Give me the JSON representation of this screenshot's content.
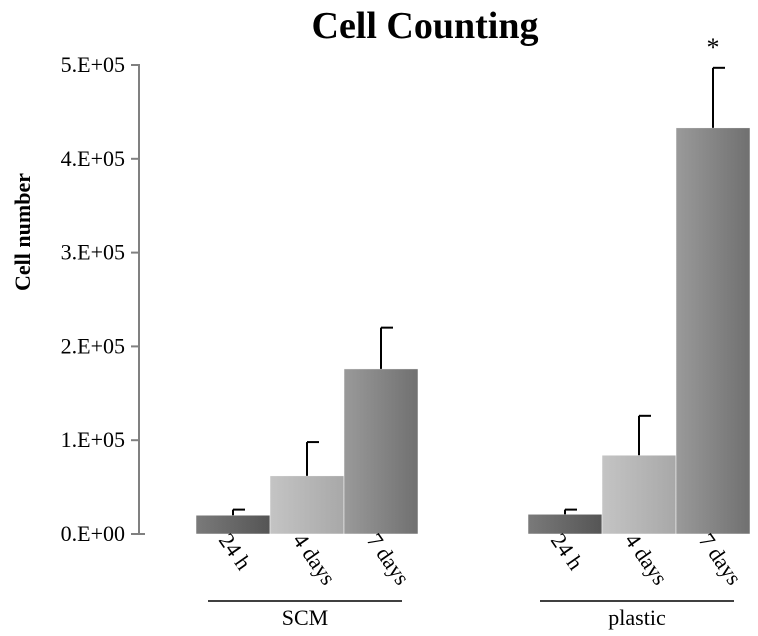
{
  "chart_data": {
    "type": "bar",
    "title": "Cell Counting",
    "ylabel": "Cell number",
    "ylim": [
      0,
      500000
    ],
    "yticks": [
      {
        "value": 0,
        "label": "0.E+00"
      },
      {
        "value": 100000,
        "label": "1.E+05"
      },
      {
        "value": 200000,
        "label": "2.E+05"
      },
      {
        "value": 300000,
        "label": "3.E+05"
      },
      {
        "value": 400000,
        "label": "4.E+05"
      },
      {
        "value": 500000,
        "label": "5.E+05"
      }
    ],
    "categories": [
      "24 h",
      "4 days",
      "7 days"
    ],
    "groups": [
      {
        "name": "SCM",
        "bars": [
          {
            "category": "24 h",
            "value": 20000,
            "error": 6000
          },
          {
            "category": "4 days",
            "value": 62000,
            "error": 36000
          },
          {
            "category": "7 days",
            "value": 176000,
            "error": 44000
          }
        ]
      },
      {
        "name": "plastic",
        "bars": [
          {
            "category": "24 h",
            "value": 21000,
            "error": 5000
          },
          {
            "category": "4 days",
            "value": 84000,
            "error": 42000
          },
          {
            "category": "7 days",
            "value": 433000,
            "error": 64000,
            "annotation": "*"
          }
        ]
      }
    ],
    "colors": {
      "24 h": "#6b6b6b",
      "4 days": "#b8b8b8",
      "7 days": "#8c8c8c"
    },
    "grid": false,
    "legend": "none"
  }
}
